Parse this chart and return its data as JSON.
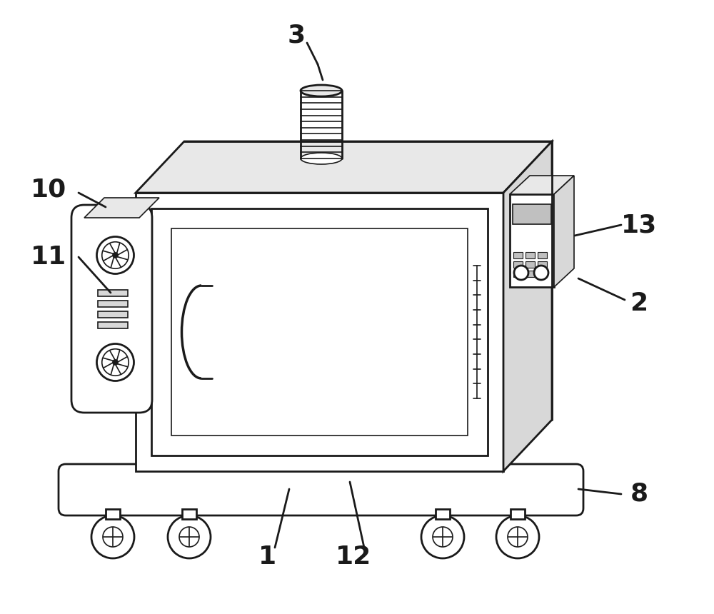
{
  "bg_color": "#ffffff",
  "line_color": "#1a1a1a",
  "lw_main": 2.0,
  "lw_thin": 1.2,
  "label_fontsize": 26,
  "label_fontweight": "bold",
  "gray_light": "#e8e8e8",
  "gray_mid": "#d8d8d8",
  "gray_dark": "#c0c0c0"
}
